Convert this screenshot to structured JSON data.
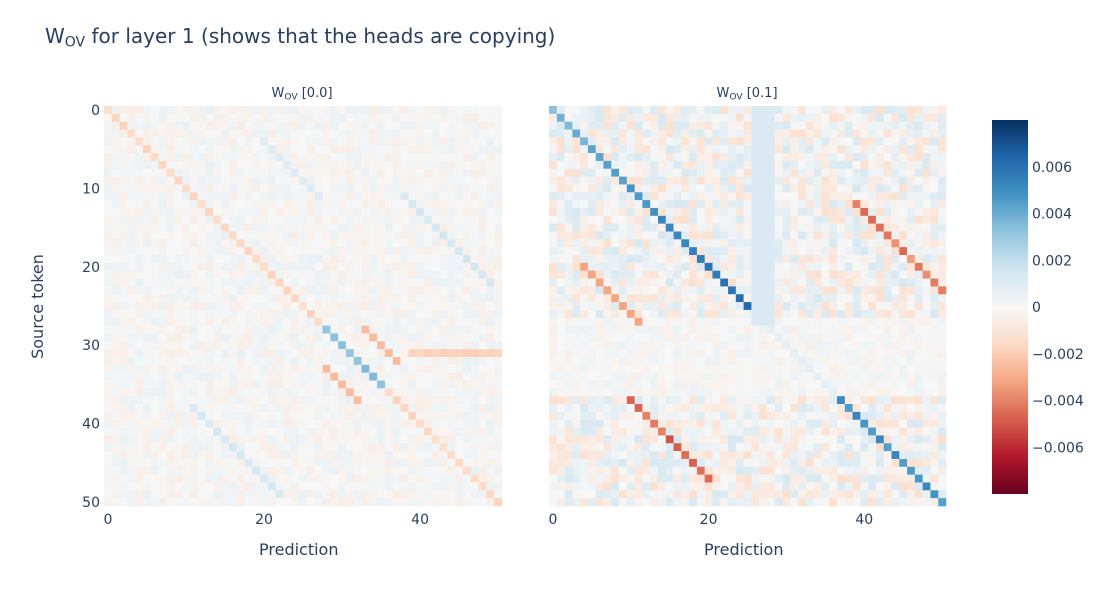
{
  "title_prefix": "W",
  "title_subscript": "OV",
  "title_suffix": " for layer 1 (shows that the heads are copying)",
  "chart_data": [
    {
      "type": "heatmap",
      "title_prefix": "W",
      "title_subscript": "OV",
      "title_suffix": " [0.0]",
      "xlabel": "Prediction",
      "ylabel": "Source token",
      "x_range": [
        0,
        51
      ],
      "y_range": [
        0,
        51
      ],
      "x_ticks": [
        0,
        20,
        40
      ],
      "y_ticks": [
        0,
        10,
        20,
        30,
        40,
        50
      ],
      "y_reversed": true,
      "cell_values_summary": {
        "diagonal_positive_band": {
          "from": [
            28,
            28
          ],
          "to": [
            35,
            35
          ],
          "approx_value": 0.003
        },
        "diagonal_negative": {
          "approx_value": -0.0015
        },
        "off_diagonal_positive_bands": [
          {
            "from": [
              11,
              38
            ],
            "to": [
              22,
              46
            ],
            "approx_value": 0.0015
          },
          {
            "from": [
              38,
              11
            ],
            "to": [
              45,
              18
            ],
            "approx_value": 0.0012
          },
          {
            "from": [
              4,
              20
            ],
            "to": [
              11,
              27
            ],
            "approx_value": 0.001
          }
        ]
      }
    },
    {
      "type": "heatmap",
      "title_prefix": "W",
      "title_subscript": "OV",
      "title_suffix": " [0.1]",
      "xlabel": "Prediction",
      "ylabel": "",
      "x_range": [
        0,
        51
      ],
      "y_range": [
        0,
        51
      ],
      "x_ticks": [
        0,
        20,
        40
      ],
      "y_reversed": true,
      "cell_values_summary": {
        "diagonal_positive_band_1": {
          "from": [
            0,
            0
          ],
          "to": [
            27,
            27
          ],
          "approx_value": 0.006
        },
        "diagonal_positive_band_2": {
          "from": [
            38,
            38
          ],
          "to": [
            50,
            50
          ],
          "approx_value": 0.005
        },
        "off_diagonal_negative_bands": [
          {
            "from": [
              12,
              38
            ],
            "to": [
              25,
              50
            ],
            "approx_value": -0.005
          },
          {
            "from": [
              38,
              12
            ],
            "to": [
              45,
              19
            ],
            "approx_value": -0.004
          },
          {
            "from": [
              4,
              20
            ],
            "to": [
              11,
              27
            ],
            "approx_value": -0.003
          }
        ]
      }
    }
  ],
  "colorbar": {
    "min": -0.008,
    "max": 0.008,
    "tick_values": [
      0.006,
      0.004,
      0.002,
      0,
      -0.002,
      -0.004,
      -0.006
    ],
    "tick_labels": [
      "0.006",
      "0.004",
      "0.002",
      "0",
      "−0.002",
      "−0.004",
      "−0.006"
    ],
    "colors": [
      "#67001f",
      "#b2182b",
      "#d6604d",
      "#f4a582",
      "#fddbc7",
      "#f7f7f7",
      "#d1e5f0",
      "#92c5de",
      "#4393c3",
      "#2166ac",
      "#053061"
    ]
  }
}
